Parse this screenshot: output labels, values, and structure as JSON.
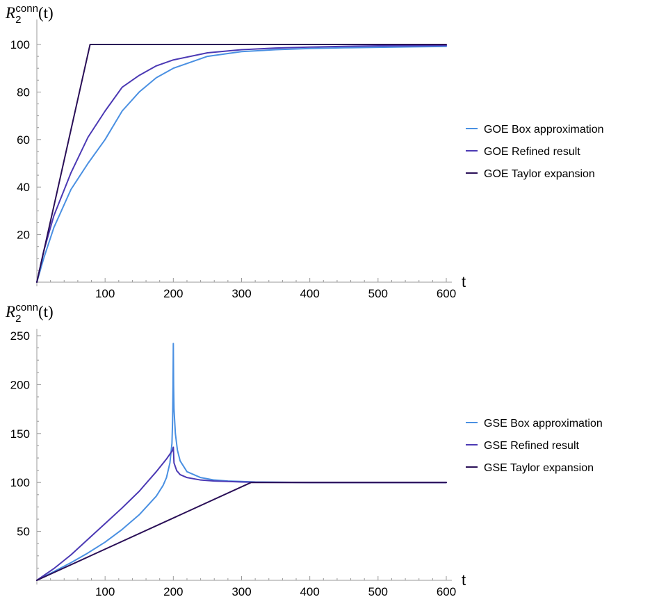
{
  "chart_data": [
    {
      "type": "line",
      "ylabel": {
        "main": "R",
        "sub": "2",
        "sup": "conn",
        "arg": "(t)"
      },
      "xlabel": "t",
      "xlim": [
        0,
        600
      ],
      "ylim": [
        0,
        100
      ],
      "x_ticks": [
        100,
        200,
        300,
        400,
        500,
        600
      ],
      "y_ticks": [
        20,
        40,
        60,
        80,
        100
      ],
      "x_tick_labels": [
        "100",
        "200",
        "300",
        "400",
        "500",
        "600"
      ],
      "y_tick_labels": [
        "20",
        "40",
        "60",
        "80",
        "100"
      ],
      "legend_position": "right",
      "series": [
        {
          "name": "GOE Box approximation",
          "color": "#4a90e2",
          "x": [
            0,
            10,
            25,
            50,
            75,
            100,
            125,
            150,
            175,
            200,
            250,
            300,
            350,
            400,
            450,
            500,
            550,
            600
          ],
          "y": [
            0,
            10,
            23,
            39,
            50,
            60,
            72,
            80,
            86,
            90,
            95,
            97,
            97.8,
            98.3,
            98.6,
            98.8,
            99.0,
            99.2
          ]
        },
        {
          "name": "GOE Refined result",
          "color": "#4b39b4",
          "x": [
            0,
            10,
            25,
            50,
            75,
            100,
            125,
            150,
            175,
            200,
            250,
            300,
            350,
            400,
            450,
            500,
            550,
            600
          ],
          "y": [
            0,
            13,
            28,
            46,
            61,
            72,
            82,
            87,
            91,
            93.5,
            96.5,
            97.8,
            98.5,
            98.9,
            99.2,
            99.4,
            99.5,
            99.6
          ]
        },
        {
          "name": "GOE Taylor expansion",
          "color": "#2a0f57",
          "x": [
            0,
            78,
            600
          ],
          "y": [
            0,
            100,
            100
          ]
        }
      ]
    },
    {
      "type": "line",
      "ylabel": {
        "main": "R",
        "sub": "2",
        "sup": "conn",
        "arg": "(t)"
      },
      "xlabel": "t",
      "xlim": [
        0,
        600
      ],
      "ylim": [
        0,
        250
      ],
      "x_ticks": [
        100,
        200,
        300,
        400,
        500,
        600
      ],
      "y_ticks": [
        50,
        100,
        150,
        200,
        250
      ],
      "x_tick_labels": [
        "100",
        "200",
        "300",
        "400",
        "500",
        "600"
      ],
      "y_tick_labels": [
        "50",
        "100",
        "150",
        "200",
        "250"
      ],
      "legend_position": "right",
      "series": [
        {
          "name": "GSE Box approximation",
          "color": "#4a90e2",
          "x": [
            0,
            25,
            50,
            75,
            100,
            125,
            150,
            175,
            185,
            190,
            195,
            198,
            199,
            199.6,
            200,
            200.4,
            201,
            203,
            206,
            210,
            220,
            240,
            260,
            280,
            300,
            320,
            400,
            600
          ],
          "y": [
            0,
            9,
            18,
            28,
            39,
            52,
            67,
            86,
            97,
            105,
            120,
            140,
            165,
            200,
            242,
            200,
            175,
            150,
            133,
            122,
            111,
            105,
            102.5,
            101.5,
            101,
            100.5,
            100,
            100
          ]
        },
        {
          "name": "GSE Refined result",
          "color": "#4b39b4",
          "x": [
            0,
            25,
            50,
            75,
            100,
            125,
            150,
            175,
            190,
            199,
            200,
            201,
            205,
            210,
            220,
            240,
            260,
            280,
            300,
            320,
            400,
            600
          ],
          "y": [
            0,
            12,
            26,
            42,
            58,
            74,
            91,
            111,
            124,
            133,
            136,
            120,
            112,
            108,
            105,
            102.5,
            101.5,
            101,
            100.5,
            100.2,
            100,
            100
          ]
        },
        {
          "name": "GSE Taylor expansion",
          "color": "#2a0f57",
          "x": [
            0,
            314,
            600
          ],
          "y": [
            0,
            100,
            100
          ]
        }
      ]
    }
  ]
}
